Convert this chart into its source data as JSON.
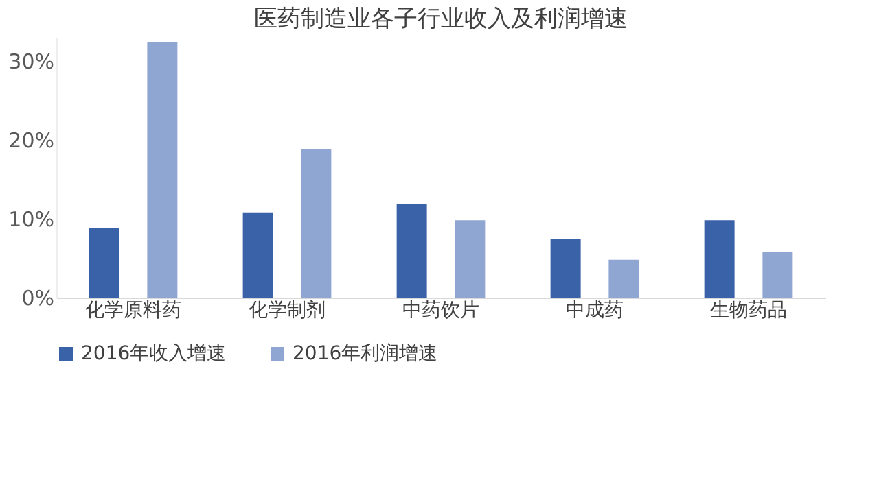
{
  "chart_data": {
    "type": "bar",
    "title": "医药制造业各子行业收入及利润增速",
    "categories": [
      "化学原料药",
      "化学制剂",
      "中药饮片",
      "中成药",
      "生物药品"
    ],
    "series": [
      {
        "name": "2016年收入增速",
        "color": "#3a62a8",
        "values": [
          8.8,
          10.8,
          11.8,
          7.4,
          9.8
        ]
      },
      {
        "name": "2016年利润增速",
        "color": "#8fa5d2",
        "values": [
          32.4,
          18.8,
          9.8,
          4.8,
          5.8
        ]
      }
    ],
    "ylim": [
      0,
      33
    ],
    "yticks": [
      {
        "value": 0,
        "label": "0%"
      },
      {
        "value": 10,
        "label": "10%"
      },
      {
        "value": 20,
        "label": "20%"
      },
      {
        "value": 30,
        "label": "30%"
      }
    ],
    "grid": false,
    "legend": "bottom"
  }
}
